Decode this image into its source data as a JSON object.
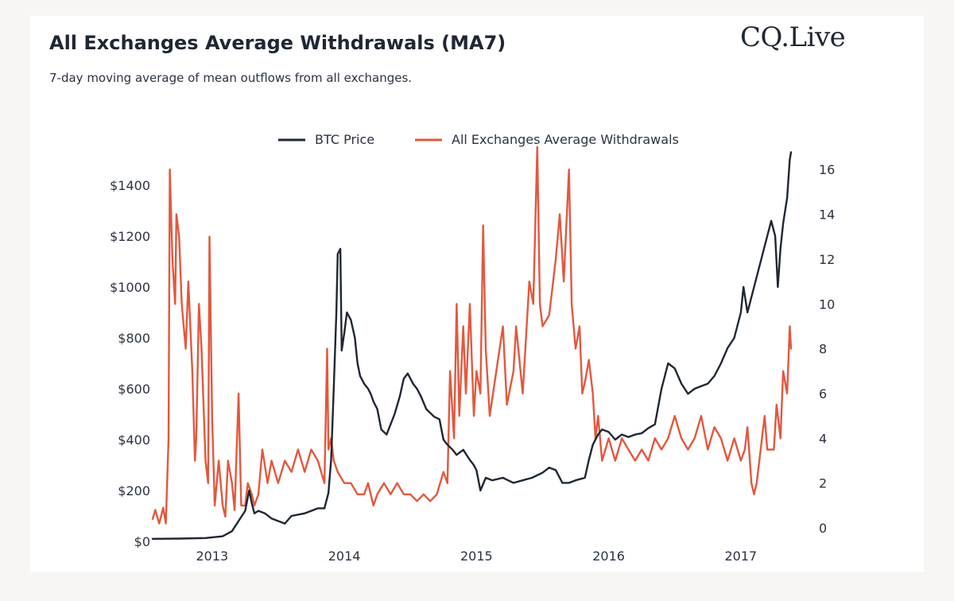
{
  "header": {
    "title": "All Exchanges Average Withdrawals (MA7)",
    "subtitle": "7-day moving average of mean outflows from all exchanges.",
    "logo_text_left": "CQ",
    "logo_text_right": "Live"
  },
  "colors": {
    "btc": "#1f2733",
    "withdrawals": "#e2583e",
    "text": "#2b3340"
  },
  "chart_data": {
    "type": "line",
    "title": "All Exchanges Average Withdrawals (MA7)",
    "xlim": [
      2012.55,
      2017.5
    ],
    "x_ticks": [
      2013,
      2014,
      2015,
      2016,
      2017
    ],
    "x_tick_labels": [
      "2013",
      "2014",
      "2015",
      "2016",
      "2017"
    ],
    "y_left": {
      "range": [
        0,
        1550
      ],
      "ticks": [
        0,
        200,
        400,
        600,
        800,
        1000,
        1200,
        1400
      ],
      "tick_labels": [
        "$0",
        "$200",
        "$400",
        "$600",
        "$800",
        "$1000",
        "$1200",
        "$1400"
      ]
    },
    "y_right": {
      "range": [
        -0.6,
        17
      ],
      "ticks": [
        0,
        2,
        4,
        6,
        8,
        10,
        12,
        14,
        16
      ],
      "tick_labels": [
        "0",
        "2",
        "4",
        "6",
        "8",
        "10",
        "12",
        "14",
        "16"
      ]
    },
    "legend": {
      "placement": "top-center"
    },
    "series": [
      {
        "name": "BTC Price",
        "axis": "left",
        "points": [
          [
            2012.55,
            10
          ],
          [
            2012.75,
            11
          ],
          [
            2012.95,
            13
          ],
          [
            2013.08,
            20
          ],
          [
            2013.15,
            40
          ],
          [
            2013.2,
            80
          ],
          [
            2013.25,
            120
          ],
          [
            2013.28,
            200
          ],
          [
            2013.3,
            150
          ],
          [
            2013.32,
            110
          ],
          [
            2013.35,
            120
          ],
          [
            2013.4,
            110
          ],
          [
            2013.45,
            90
          ],
          [
            2013.5,
            80
          ],
          [
            2013.55,
            70
          ],
          [
            2013.6,
            100
          ],
          [
            2013.7,
            110
          ],
          [
            2013.75,
            120
          ],
          [
            2013.8,
            130
          ],
          [
            2013.85,
            130
          ],
          [
            2013.88,
            190
          ],
          [
            2013.9,
            320
          ],
          [
            2013.92,
            600
          ],
          [
            2013.94,
            900
          ],
          [
            2013.95,
            1130
          ],
          [
            2013.97,
            1150
          ],
          [
            2013.98,
            750
          ],
          [
            2014.0,
            820
          ],
          [
            2014.02,
            900
          ],
          [
            2014.05,
            870
          ],
          [
            2014.08,
            800
          ],
          [
            2014.1,
            700
          ],
          [
            2014.12,
            650
          ],
          [
            2014.15,
            620
          ],
          [
            2014.18,
            600
          ],
          [
            2014.2,
            580
          ],
          [
            2014.22,
            550
          ],
          [
            2014.25,
            520
          ],
          [
            2014.28,
            440
          ],
          [
            2014.32,
            420
          ],
          [
            2014.35,
            460
          ],
          [
            2014.38,
            500
          ],
          [
            2014.42,
            570
          ],
          [
            2014.45,
            640
          ],
          [
            2014.48,
            660
          ],
          [
            2014.52,
            620
          ],
          [
            2014.55,
            600
          ],
          [
            2014.58,
            570
          ],
          [
            2014.62,
            520
          ],
          [
            2014.68,
            490
          ],
          [
            2014.72,
            480
          ],
          [
            2014.75,
            400
          ],
          [
            2014.78,
            380
          ],
          [
            2014.82,
            360
          ],
          [
            2014.85,
            340
          ],
          [
            2014.9,
            360
          ],
          [
            2014.95,
            320
          ],
          [
            2014.98,
            300
          ],
          [
            2015.0,
            280
          ],
          [
            2015.03,
            200
          ],
          [
            2015.07,
            250
          ],
          [
            2015.12,
            240
          ],
          [
            2015.2,
            250
          ],
          [
            2015.28,
            230
          ],
          [
            2015.35,
            240
          ],
          [
            2015.42,
            250
          ],
          [
            2015.5,
            270
          ],
          [
            2015.55,
            290
          ],
          [
            2015.6,
            280
          ],
          [
            2015.65,
            230
          ],
          [
            2015.7,
            230
          ],
          [
            2015.75,
            240
          ],
          [
            2015.82,
            250
          ],
          [
            2015.85,
            320
          ],
          [
            2015.88,
            380
          ],
          [
            2015.92,
            420
          ],
          [
            2015.95,
            440
          ],
          [
            2016.0,
            430
          ],
          [
            2016.05,
            400
          ],
          [
            2016.1,
            420
          ],
          [
            2016.15,
            410
          ],
          [
            2016.2,
            420
          ],
          [
            2016.25,
            425
          ],
          [
            2016.3,
            445
          ],
          [
            2016.35,
            460
          ],
          [
            2016.4,
            600
          ],
          [
            2016.45,
            700
          ],
          [
            2016.5,
            680
          ],
          [
            2016.55,
            620
          ],
          [
            2016.6,
            580
          ],
          [
            2016.65,
            600
          ],
          [
            2016.7,
            610
          ],
          [
            2016.75,
            620
          ],
          [
            2016.8,
            650
          ],
          [
            2016.85,
            700
          ],
          [
            2016.9,
            760
          ],
          [
            2016.95,
            800
          ],
          [
            2017.0,
            900
          ],
          [
            2017.02,
            1000
          ],
          [
            2017.05,
            900
          ],
          [
            2017.1,
            1000
          ],
          [
            2017.15,
            1100
          ],
          [
            2017.2,
            1200
          ],
          [
            2017.23,
            1260
          ],
          [
            2017.26,
            1200
          ],
          [
            2017.28,
            1000
          ],
          [
            2017.3,
            1150
          ],
          [
            2017.32,
            1250
          ],
          [
            2017.35,
            1350
          ],
          [
            2017.37,
            1500
          ],
          [
            2017.38,
            1530
          ]
        ]
      },
      {
        "name": "All Exchanges Average Withdrawals",
        "axis": "right",
        "points": [
          [
            2012.55,
            0.4
          ],
          [
            2012.57,
            0.8
          ],
          [
            2012.6,
            0.2
          ],
          [
            2012.63,
            0.9
          ],
          [
            2012.65,
            0.2
          ],
          [
            2012.67,
            4
          ],
          [
            2012.68,
            16
          ],
          [
            2012.7,
            12
          ],
          [
            2012.72,
            10
          ],
          [
            2012.73,
            14
          ],
          [
            2012.75,
            13
          ],
          [
            2012.77,
            10
          ],
          [
            2012.8,
            8
          ],
          [
            2012.82,
            11
          ],
          [
            2012.85,
            7
          ],
          [
            2012.87,
            3
          ],
          [
            2012.88,
            4
          ],
          [
            2012.9,
            10
          ],
          [
            2012.92,
            8
          ],
          [
            2012.95,
            3
          ],
          [
            2012.97,
            2
          ],
          [
            2012.98,
            13
          ],
          [
            2013.0,
            5
          ],
          [
            2013.02,
            1
          ],
          [
            2013.05,
            3
          ],
          [
            2013.08,
            1
          ],
          [
            2013.1,
            0.5
          ],
          [
            2013.12,
            3
          ],
          [
            2013.15,
            2
          ],
          [
            2013.17,
            0.8
          ],
          [
            2013.2,
            6
          ],
          [
            2013.22,
            1
          ],
          [
            2013.25,
            1
          ],
          [
            2013.27,
            2
          ],
          [
            2013.3,
            1.5
          ],
          [
            2013.32,
            1
          ],
          [
            2013.35,
            1.5
          ],
          [
            2013.38,
            3.5
          ],
          [
            2013.42,
            2
          ],
          [
            2013.45,
            3
          ],
          [
            2013.5,
            2
          ],
          [
            2013.55,
            3
          ],
          [
            2013.6,
            2.5
          ],
          [
            2013.65,
            3.5
          ],
          [
            2013.7,
            2.5
          ],
          [
            2013.75,
            3.5
          ],
          [
            2013.8,
            3
          ],
          [
            2013.85,
            2
          ],
          [
            2013.87,
            8
          ],
          [
            2013.88,
            3.5
          ],
          [
            2013.9,
            4
          ],
          [
            2013.92,
            3
          ],
          [
            2013.95,
            2.5
          ],
          [
            2014.0,
            2
          ],
          [
            2014.05,
            2
          ],
          [
            2014.1,
            1.5
          ],
          [
            2014.15,
            1.5
          ],
          [
            2014.18,
            2
          ],
          [
            2014.22,
            1
          ],
          [
            2014.25,
            1.5
          ],
          [
            2014.3,
            2
          ],
          [
            2014.35,
            1.5
          ],
          [
            2014.4,
            2
          ],
          [
            2014.45,
            1.5
          ],
          [
            2014.5,
            1.5
          ],
          [
            2014.55,
            1.2
          ],
          [
            2014.6,
            1.5
          ],
          [
            2014.65,
            1.2
          ],
          [
            2014.7,
            1.5
          ],
          [
            2014.75,
            2.5
          ],
          [
            2014.78,
            2
          ],
          [
            2014.8,
            7
          ],
          [
            2014.83,
            4
          ],
          [
            2014.85,
            10
          ],
          [
            2014.87,
            5
          ],
          [
            2014.9,
            9
          ],
          [
            2014.92,
            6
          ],
          [
            2014.95,
            10
          ],
          [
            2014.98,
            5
          ],
          [
            2015.0,
            7
          ],
          [
            2015.03,
            6
          ],
          [
            2015.05,
            13.5
          ],
          [
            2015.07,
            8
          ],
          [
            2015.1,
            5
          ],
          [
            2015.15,
            7
          ],
          [
            2015.2,
            9
          ],
          [
            2015.23,
            5.5
          ],
          [
            2015.28,
            7
          ],
          [
            2015.3,
            9
          ],
          [
            2015.35,
            6
          ],
          [
            2015.4,
            11
          ],
          [
            2015.43,
            10
          ],
          [
            2015.46,
            17
          ],
          [
            2015.48,
            10
          ],
          [
            2015.5,
            9
          ],
          [
            2015.55,
            9.5
          ],
          [
            2015.6,
            12
          ],
          [
            2015.63,
            14
          ],
          [
            2015.66,
            11
          ],
          [
            2015.7,
            16
          ],
          [
            2015.72,
            10
          ],
          [
            2015.75,
            8
          ],
          [
            2015.78,
            9
          ],
          [
            2015.8,
            6
          ],
          [
            2015.82,
            6.5
          ],
          [
            2015.85,
            7.5
          ],
          [
            2015.88,
            6
          ],
          [
            2015.9,
            4
          ],
          [
            2015.92,
            5
          ],
          [
            2015.95,
            3
          ],
          [
            2016.0,
            4
          ],
          [
            2016.05,
            3
          ],
          [
            2016.1,
            4
          ],
          [
            2016.15,
            3.5
          ],
          [
            2016.2,
            3
          ],
          [
            2016.25,
            3.5
          ],
          [
            2016.3,
            3
          ],
          [
            2016.35,
            4
          ],
          [
            2016.4,
            3.5
          ],
          [
            2016.45,
            4
          ],
          [
            2016.5,
            5
          ],
          [
            2016.55,
            4
          ],
          [
            2016.6,
            3.5
          ],
          [
            2016.65,
            4
          ],
          [
            2016.7,
            5
          ],
          [
            2016.75,
            3.5
          ],
          [
            2016.8,
            4.5
          ],
          [
            2016.85,
            4
          ],
          [
            2016.9,
            3
          ],
          [
            2016.95,
            4
          ],
          [
            2017.0,
            3
          ],
          [
            2017.03,
            3.5
          ],
          [
            2017.05,
            4.5
          ],
          [
            2017.08,
            2
          ],
          [
            2017.1,
            1.5
          ],
          [
            2017.12,
            2
          ],
          [
            2017.15,
            3.5
          ],
          [
            2017.18,
            5
          ],
          [
            2017.2,
            3.5
          ],
          [
            2017.25,
            3.5
          ],
          [
            2017.27,
            5.5
          ],
          [
            2017.3,
            4
          ],
          [
            2017.32,
            7
          ],
          [
            2017.35,
            6
          ],
          [
            2017.37,
            9
          ],
          [
            2017.38,
            8
          ]
        ]
      }
    ]
  }
}
